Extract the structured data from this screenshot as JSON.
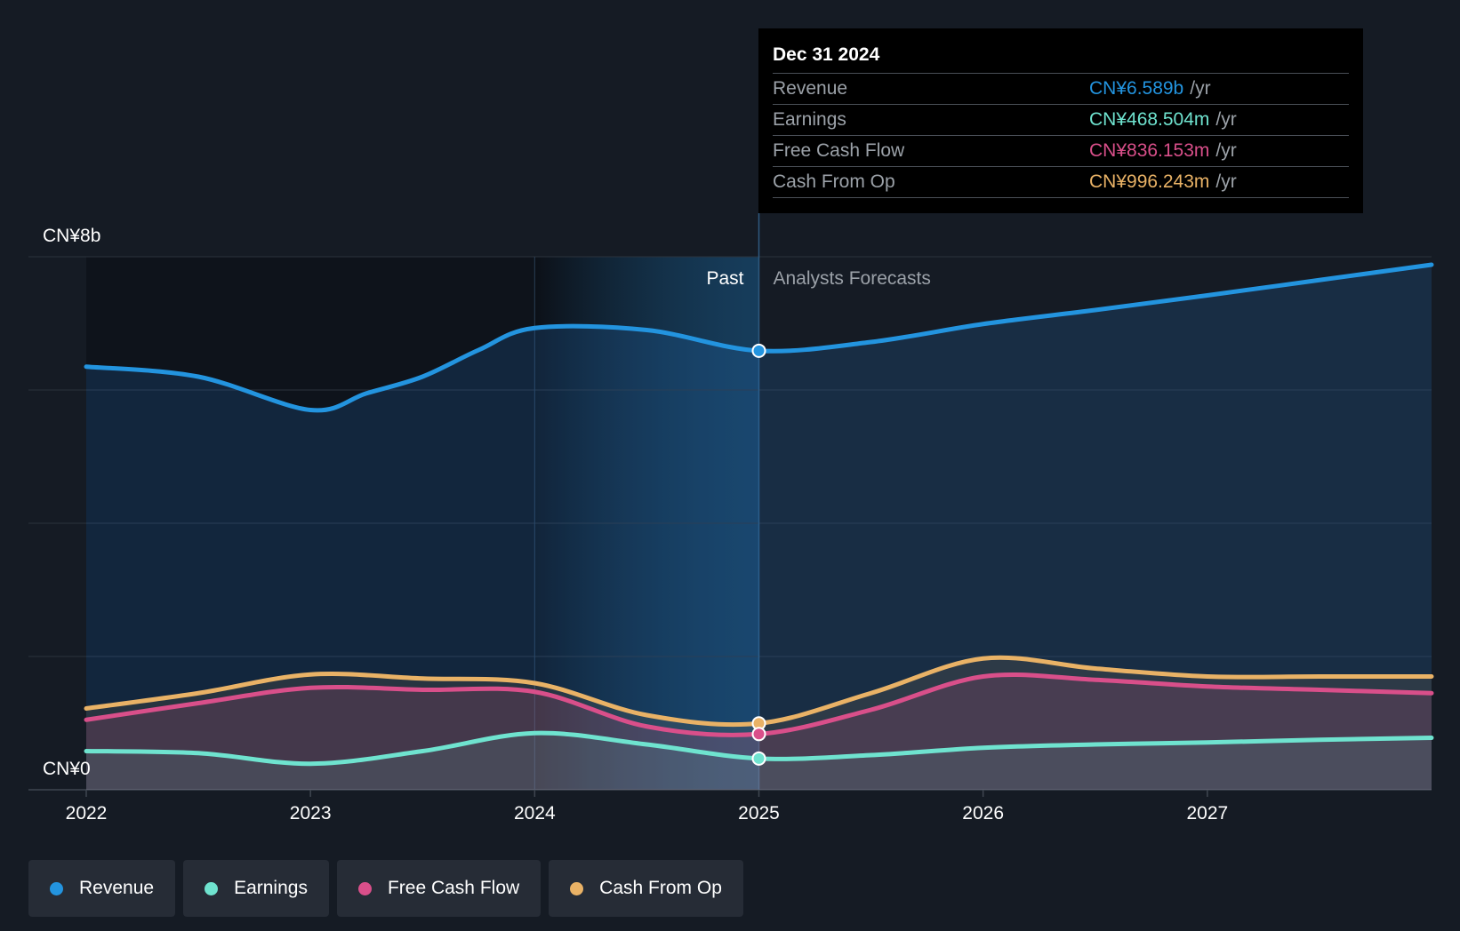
{
  "chart_data": {
    "type": "area",
    "y_top_label": "CN¥8b",
    "y_bottom_label": "CN¥0",
    "ylim": [
      0,
      8
    ],
    "xlim": [
      2022.0,
      2028.0
    ],
    "x_ticks": [
      "2022",
      "2023",
      "2024",
      "2025",
      "2026",
      "2027"
    ],
    "x_tick_values": [
      2022,
      2023,
      2024,
      2025,
      2026,
      2027
    ],
    "past_label": "Past",
    "forecast_label": "Analysts Forecasts",
    "divider_x": 2025.0,
    "past_highlight_start": 2024.0,
    "series": [
      {
        "name": "Revenue",
        "color": "#2394df",
        "x": [
          2022.0,
          2022.5,
          2023.0,
          2023.25,
          2023.5,
          2023.75,
          2024.0,
          2024.5,
          2025.0,
          2025.5,
          2026.0,
          2026.5,
          2027.0,
          2027.5,
          2028.0
        ],
        "values": [
          6.35,
          6.2,
          5.7,
          5.95,
          6.2,
          6.6,
          6.93,
          6.9,
          6.589,
          6.72,
          6.99,
          7.2,
          7.42,
          7.65,
          7.88
        ]
      },
      {
        "name": "Earnings",
        "color": "#6fe3cf",
        "x": [
          2022.0,
          2022.5,
          2023.0,
          2023.5,
          2024.0,
          2024.5,
          2025.0,
          2025.5,
          2026.0,
          2026.5,
          2027.0,
          2027.5,
          2028.0
        ],
        "values": [
          0.58,
          0.55,
          0.39,
          0.58,
          0.85,
          0.68,
          0.469,
          0.52,
          0.63,
          0.68,
          0.71,
          0.75,
          0.78
        ]
      },
      {
        "name": "Free Cash Flow",
        "color": "#d94f8a",
        "x": [
          2022.0,
          2022.5,
          2023.0,
          2023.5,
          2024.0,
          2024.5,
          2025.0,
          2025.5,
          2026.0,
          2026.5,
          2027.0,
          2027.5,
          2028.0
        ],
        "values": [
          1.05,
          1.3,
          1.53,
          1.5,
          1.47,
          0.95,
          0.836,
          1.2,
          1.7,
          1.65,
          1.55,
          1.5,
          1.45
        ]
      },
      {
        "name": "Cash From Op",
        "color": "#e9b266",
        "x": [
          2022.0,
          2022.5,
          2023.0,
          2023.5,
          2024.0,
          2024.5,
          2025.0,
          2025.5,
          2026.0,
          2026.5,
          2027.0,
          2027.5,
          2028.0
        ],
        "values": [
          1.22,
          1.45,
          1.73,
          1.67,
          1.6,
          1.12,
          0.996,
          1.45,
          1.97,
          1.82,
          1.7,
          1.7,
          1.7
        ]
      }
    ],
    "tooltip": {
      "date": "Dec 31 2024",
      "unit": "/yr",
      "rows": [
        {
          "label": "Revenue",
          "value": "CN¥6.589b",
          "color": "#2394df"
        },
        {
          "label": "Earnings",
          "value": "CN¥468.504m",
          "color": "#6fe3cf"
        },
        {
          "label": "Free Cash Flow",
          "value": "CN¥836.153m",
          "color": "#d94f8a"
        },
        {
          "label": "Cash From Op",
          "value": "CN¥996.243m",
          "color": "#e9b266"
        }
      ]
    },
    "legend": [
      {
        "label": "Revenue",
        "color": "#2394df"
      },
      {
        "label": "Earnings",
        "color": "#6fe3cf"
      },
      {
        "label": "Free Cash Flow",
        "color": "#d94f8a"
      },
      {
        "label": "Cash From Op",
        "color": "#e9b266"
      }
    ]
  }
}
